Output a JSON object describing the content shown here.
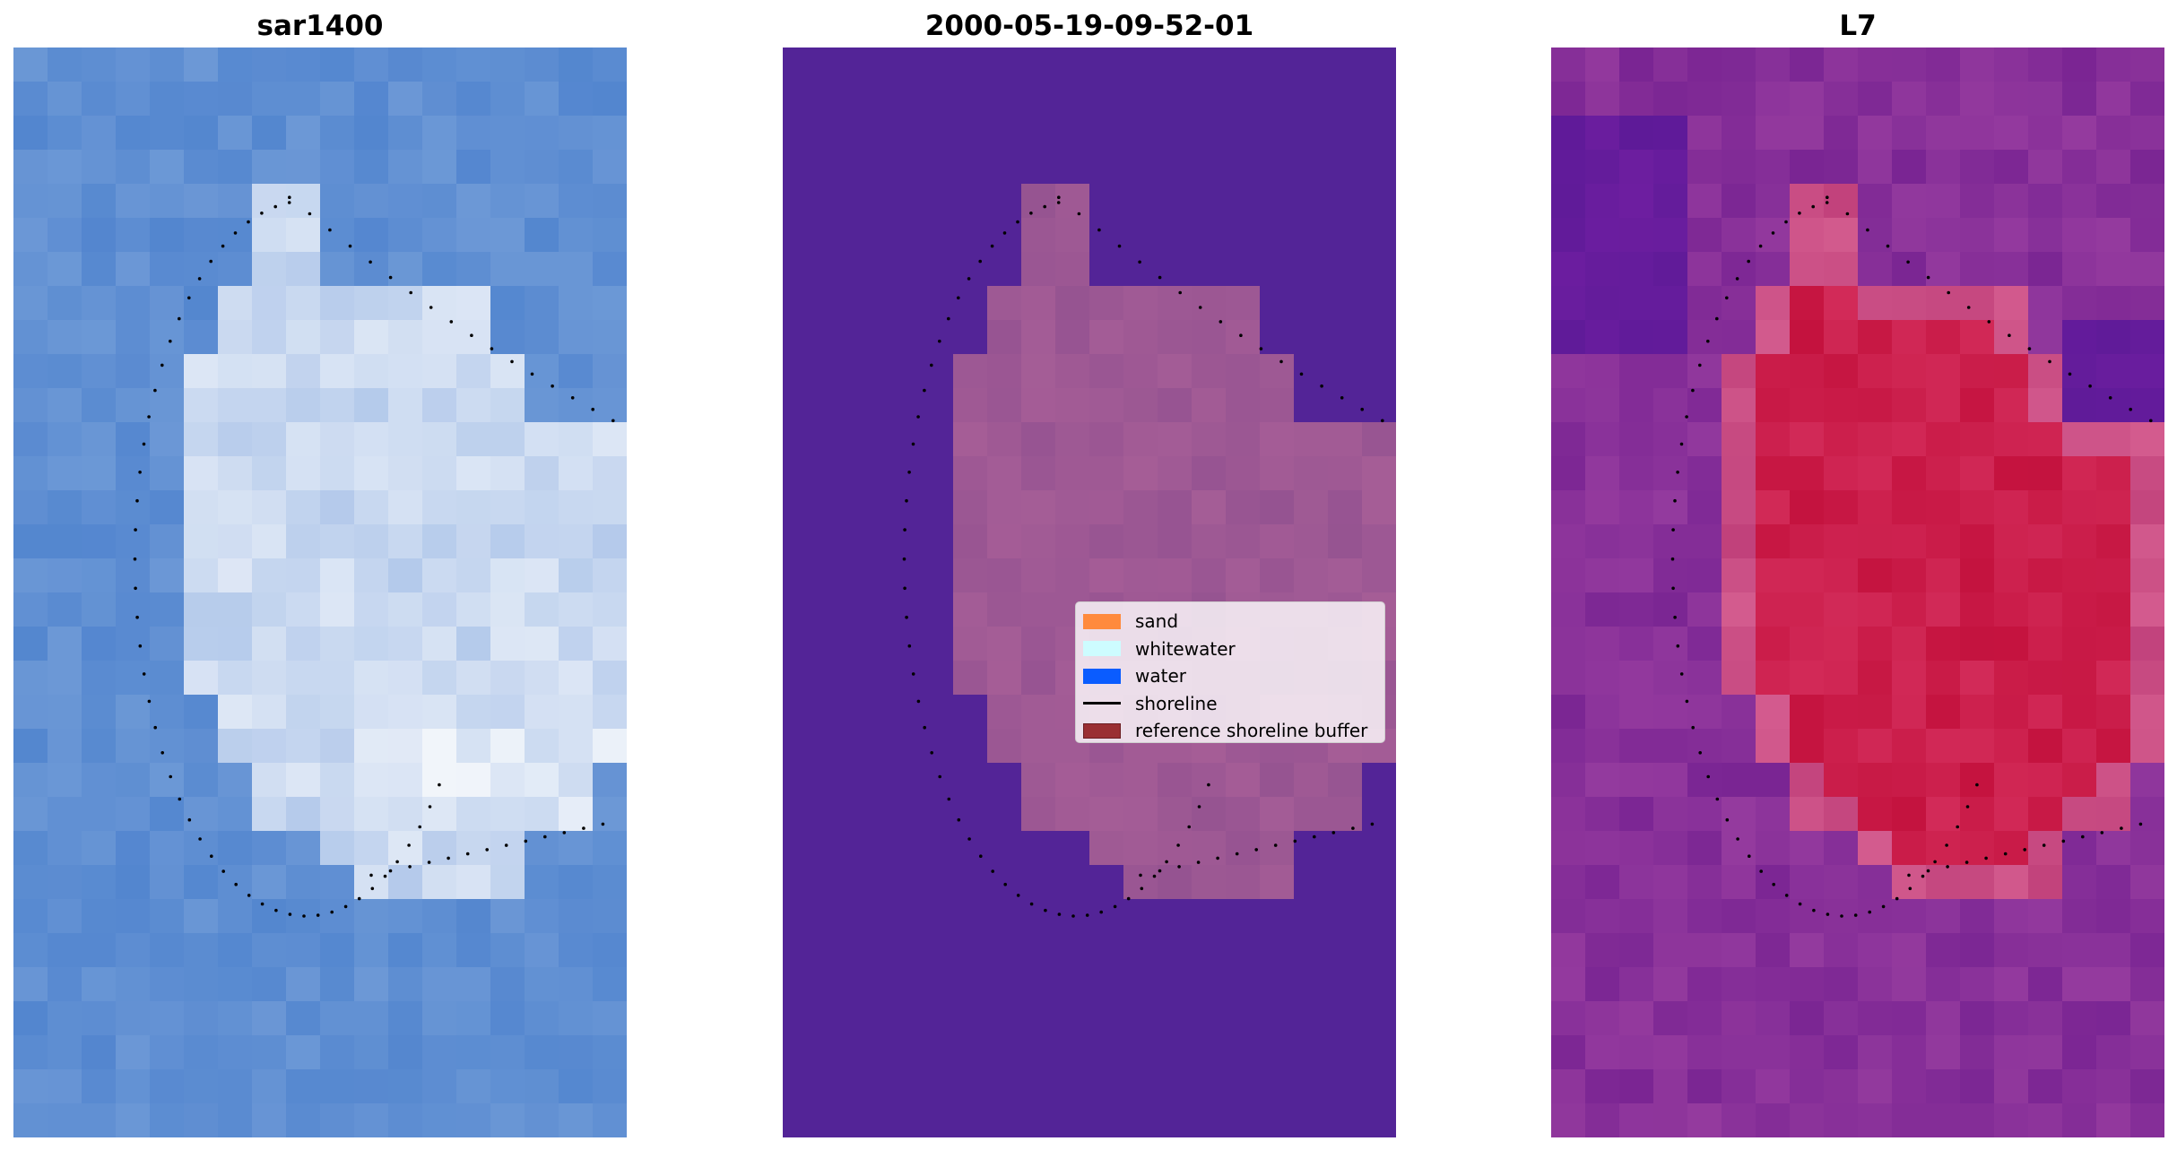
{
  "panels": [
    {
      "title": "sar1400",
      "base_color": "#5b8bd0",
      "dot_color": "#000000"
    },
    {
      "title": "2000-05-19-09-52-01",
      "base_color": "#532497",
      "blob_color": "#9b5694",
      "dot_color": "#000000"
    },
    {
      "title": "L7",
      "base_color": "#8a2c99",
      "blob_color": "#c8123f",
      "dot_color": "#000000"
    }
  ],
  "legend": {
    "items": [
      {
        "label": "sand",
        "color": "#ff8a3d",
        "kind": "patch"
      },
      {
        "label": "whitewater",
        "color": "#cdfcff",
        "kind": "patch"
      },
      {
        "label": "water",
        "color": "#0a5cff",
        "kind": "patch"
      },
      {
        "label": "shoreline",
        "color": "#000000",
        "kind": "line"
      },
      {
        "label": "reference shoreline buffer",
        "color": "#9a2f33",
        "kind": "patch"
      }
    ]
  }
}
